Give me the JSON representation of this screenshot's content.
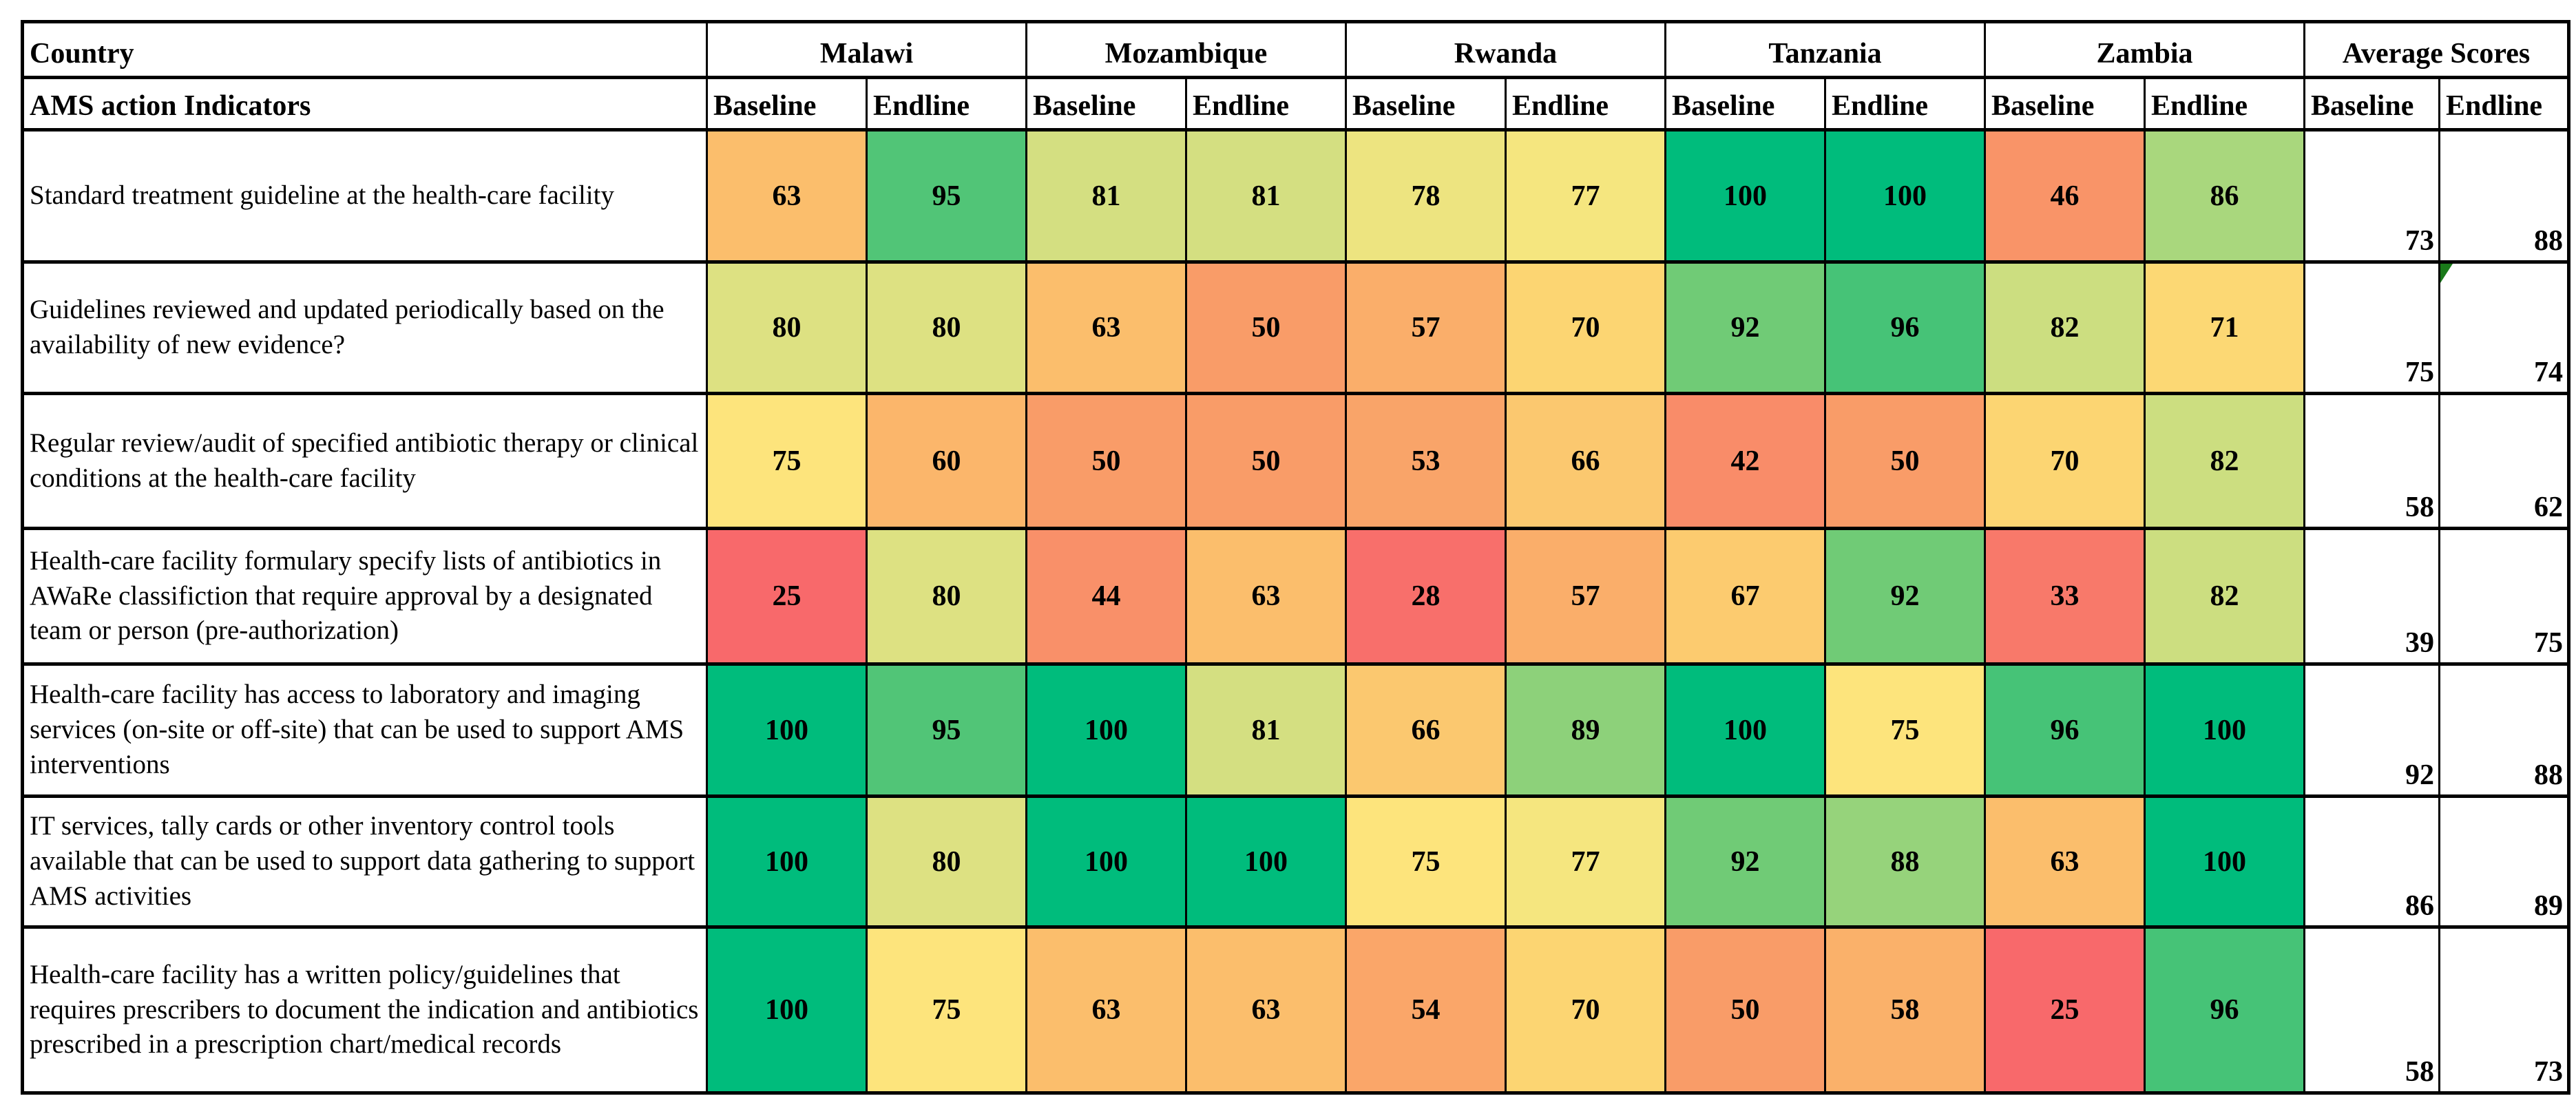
{
  "page": {
    "background": "#FFFFFF",
    "border_color": "#000000",
    "flag_color": "#1A7A1A"
  },
  "table": {
    "header": {
      "row1_label": "Country",
      "row2_label": "AMS action Indicators",
      "country_groups": [
        "Malawi",
        "Mozambique",
        "Rwanda",
        "Tanzania",
        "Zambia"
      ],
      "average_group_label": "Average Scores",
      "sub_headers": [
        "Baseline",
        "Endline"
      ]
    },
    "rows": [
      {
        "indicator": "Standard treatment guideline at the health-care facility",
        "values": [
          63,
          95,
          81,
          81,
          78,
          77,
          100,
          100,
          46,
          86
        ],
        "averages": [
          73,
          88
        ]
      },
      {
        "indicator": "Guidelines reviewed and updated periodically based on the availability of new evidence?",
        "values": [
          80,
          80,
          63,
          50,
          57,
          70,
          92,
          96,
          82,
          71
        ],
        "averages": [
          75,
          74
        ],
        "flag_on_average_endline": true
      },
      {
        "indicator": "Regular review/audit of specified antibiotic therapy or clinical conditions at the health-care facility",
        "values": [
          75,
          60,
          50,
          50,
          53,
          66,
          42,
          50,
          70,
          82
        ],
        "averages": [
          58,
          62
        ]
      },
      {
        "indicator": "Health-care facility formulary specify lists of  antibiotics in AWaRe classifiction that require approval by a designated team or person (pre-authorization)",
        "values": [
          25,
          80,
          44,
          63,
          28,
          57,
          67,
          92,
          33,
          82
        ],
        "averages": [
          39,
          75
        ]
      },
      {
        "indicator": "Health-care facility has access to laboratory and imaging services (on-site or off-site) that can be used to support AMS interventions",
        "values": [
          100,
          95,
          100,
          81,
          66,
          89,
          100,
          75,
          96,
          100
        ],
        "averages": [
          92,
          88
        ]
      },
      {
        "indicator": " IT services, tally cards or other inventory control tools available that can be used to support data gathering to support AMS activities",
        "values": [
          100,
          80,
          100,
          100,
          75,
          77,
          92,
          88,
          63,
          100
        ],
        "averages": [
          86,
          89
        ]
      },
      {
        "indicator": "Health-care facility has a written policy/guidelines that requires prescribers to document the indication and antibiotics prescribed in a prescription chart/medical records",
        "values": [
          100,
          75,
          63,
          63,
          54,
          70,
          50,
          58,
          25,
          96
        ],
        "averages": [
          58,
          73
        ]
      }
    ],
    "color_scale": {
      "description": "red-yellow-green conditional formatting fill; average score cells have no fill",
      "stops": [
        [
          25,
          "#F8696B"
        ],
        [
          50,
          "#F99C68"
        ],
        [
          63,
          "#FBBE6C"
        ],
        [
          70,
          "#FCD572"
        ],
        [
          76,
          "#FDE77E"
        ],
        [
          80,
          "#DDE182"
        ],
        [
          86,
          "#A9D77D"
        ],
        [
          92,
          "#70CB76"
        ],
        [
          96,
          "#46C377"
        ],
        [
          100,
          "#00BC7C"
        ]
      ]
    }
  },
  "chart_data": {
    "type": "heatmap",
    "title": "",
    "row_header_labels": [
      "Country",
      "AMS action Indicators"
    ],
    "column_groups": [
      "Malawi",
      "Mozambique",
      "Rwanda",
      "Tanzania",
      "Zambia",
      "Average Scores"
    ],
    "columns": [
      "Malawi Baseline",
      "Malawi Endline",
      "Mozambique Baseline",
      "Mozambique Endline",
      "Rwanda Baseline",
      "Rwanda Endline",
      "Tanzania Baseline",
      "Tanzania Endline",
      "Zambia Baseline",
      "Zambia Endline",
      "Average Scores Baseline",
      "Average Scores Endline"
    ],
    "rows": [
      "Standard treatment guideline at the health-care facility",
      "Guidelines reviewed and updated periodically based on the availability of new evidence?",
      "Regular review/audit of specified antibiotic therapy or clinical conditions at the health-care facility",
      "Health-care facility formulary specify lists of  antibiotics in AWaRe classifiction that require approval by a designated team or person (pre-authorization)",
      "Health-care facility has access to laboratory and imaging services (on-site or off-site) that can be used to support AMS interventions",
      " IT services, tally cards or other inventory control tools available that can be used to support data gathering to support AMS activities",
      "Health-care facility has a written policy/guidelines that requires prescribers to document the indication and antibiotics prescribed in a prescription chart/medical records"
    ],
    "values": [
      [
        63,
        95,
        81,
        81,
        78,
        77,
        100,
        100,
        46,
        86,
        73,
        88
      ],
      [
        80,
        80,
        63,
        50,
        57,
        70,
        92,
        96,
        82,
        71,
        75,
        74
      ],
      [
        75,
        60,
        50,
        50,
        53,
        66,
        42,
        50,
        70,
        82,
        58,
        62
      ],
      [
        25,
        80,
        44,
        63,
        28,
        57,
        67,
        92,
        33,
        82,
        39,
        75
      ],
      [
        100,
        95,
        100,
        81,
        66,
        89,
        100,
        75,
        96,
        100,
        92,
        88
      ],
      [
        100,
        80,
        100,
        100,
        75,
        77,
        92,
        88,
        63,
        100,
        86,
        89
      ],
      [
        100,
        75,
        63,
        63,
        54,
        70,
        50,
        58,
        25,
        96,
        58,
        73
      ]
    ],
    "colormap": "red (low, 25) -> yellow (~76) -> green (high, 100); average columns uncolored white",
    "value_range": [
      25,
      100
    ],
    "grid": true,
    "legend": false
  }
}
